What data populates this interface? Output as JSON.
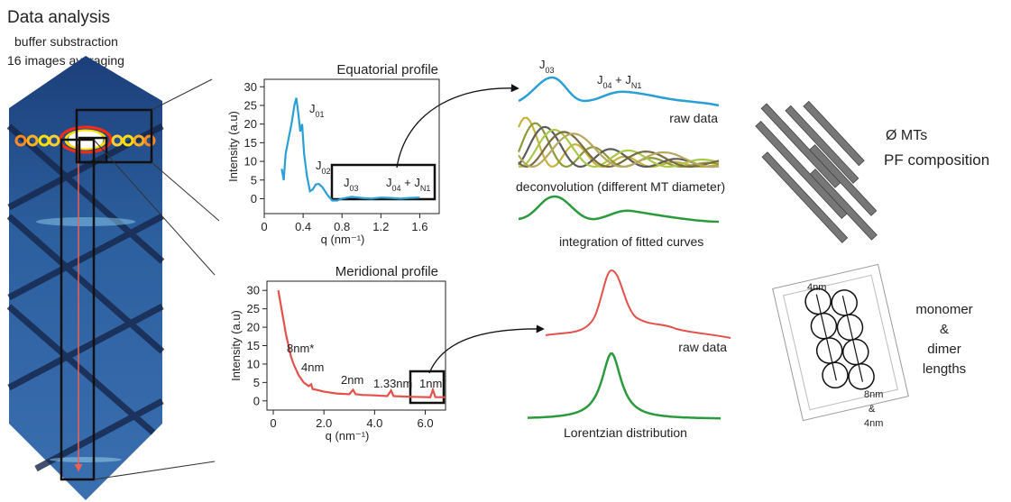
{
  "header": {
    "title": "Data analysis",
    "steps": [
      "buffer substraction",
      "16 images averaging"
    ]
  },
  "chart_data": [
    {
      "type": "line",
      "title": "Equatorial profile",
      "x_label": "q (nm⁻¹)",
      "y_label": "Intensity (a.u)",
      "color": "#2a9fd6",
      "x": [
        0.18,
        0.2,
        0.22,
        0.25,
        0.28,
        0.31,
        0.33,
        0.35,
        0.37,
        0.39,
        0.41,
        0.44,
        0.47,
        0.5,
        0.53,
        0.56,
        0.6,
        0.65,
        0.7,
        0.75,
        0.8,
        0.9,
        1.0,
        1.1,
        1.2,
        1.3,
        1.4,
        1.5,
        1.6
      ],
      "values": [
        8,
        5,
        12,
        16,
        20,
        25,
        27,
        23,
        18,
        20,
        12,
        6,
        2,
        2.5,
        3.8,
        4,
        3,
        1,
        -0.5,
        -0.5,
        0,
        0.5,
        0.2,
        0,
        0.3,
        0.2,
        0,
        0.2,
        0.3
      ],
      "xlim": [
        0,
        1.8
      ],
      "xticks": [
        0,
        0.4,
        0.8,
        1.2,
        1.6
      ],
      "ylim": [
        -4,
        32
      ],
      "yticks": [
        0,
        5,
        10,
        15,
        20,
        25,
        30
      ],
      "annotations": [
        [
          "J",
          "01"
        ],
        [
          "J",
          "02"
        ],
        [
          "J",
          "03"
        ],
        [
          "J",
          "04",
          " + J",
          "N1"
        ]
      ]
    },
    {
      "type": "line",
      "title": "Meridional profile",
      "x_label": "q (nm⁻¹)",
      "y_label": "Intensity (a.u)",
      "color": "#e4504a",
      "x": [
        0.2,
        0.3,
        0.4,
        0.5,
        0.6,
        0.7,
        0.8,
        0.9,
        1.0,
        1.2,
        1.4,
        1.5,
        1.55,
        1.7,
        2.0,
        2.5,
        3.0,
        3.15,
        3.25,
        3.5,
        4.0,
        4.5,
        4.65,
        4.75,
        5.5,
        6.2,
        6.3,
        6.4,
        6.8
      ],
      "values": [
        30,
        26,
        22,
        18,
        15,
        12,
        10,
        8.5,
        7,
        5,
        4,
        4.5,
        3.2,
        3,
        2.5,
        2,
        1.8,
        3,
        1.8,
        1.6,
        1.5,
        1.3,
        2.8,
        1.3,
        1.1,
        1,
        3,
        1,
        1
      ],
      "xlim": [
        -0.25,
        6.8
      ],
      "xticks": [
        0,
        {
          "value": 2,
          "label": "2.0"
        },
        {
          "value": 4,
          "label": "4.0"
        },
        {
          "value": 6,
          "label": "6.0"
        }
      ],
      "ylim": [
        -2.5,
        32.5
      ],
      "yticks": [
        0,
        5,
        10,
        15,
        20,
        25,
        30
      ],
      "annotations": [
        [
          "8nm*"
        ],
        [
          "4nm"
        ],
        [
          "2nm"
        ],
        [
          "1.33nm"
        ],
        [
          "1nm"
        ]
      ]
    }
  ],
  "processing": {
    "equatorial": {
      "peaks": [
        [
          "J",
          "03"
        ],
        [
          "J",
          "04",
          " + J",
          "N1"
        ]
      ],
      "raw": "raw data",
      "deconvolution": "deconvolution (different MT diameter)",
      "integration": "integration of fitted curves"
    },
    "meridional": {
      "raw": "raw data",
      "fit": "Lorentzian distribution"
    }
  },
  "outputs": {
    "equatorial": [
      "Ø MTs",
      "PF composition"
    ],
    "meridional": {
      "lengths": [
        "monomer",
        "&",
        "dimer",
        "lengths"
      ],
      "scale": [
        "4nm",
        "8nm",
        "&",
        "4nm"
      ]
    }
  }
}
